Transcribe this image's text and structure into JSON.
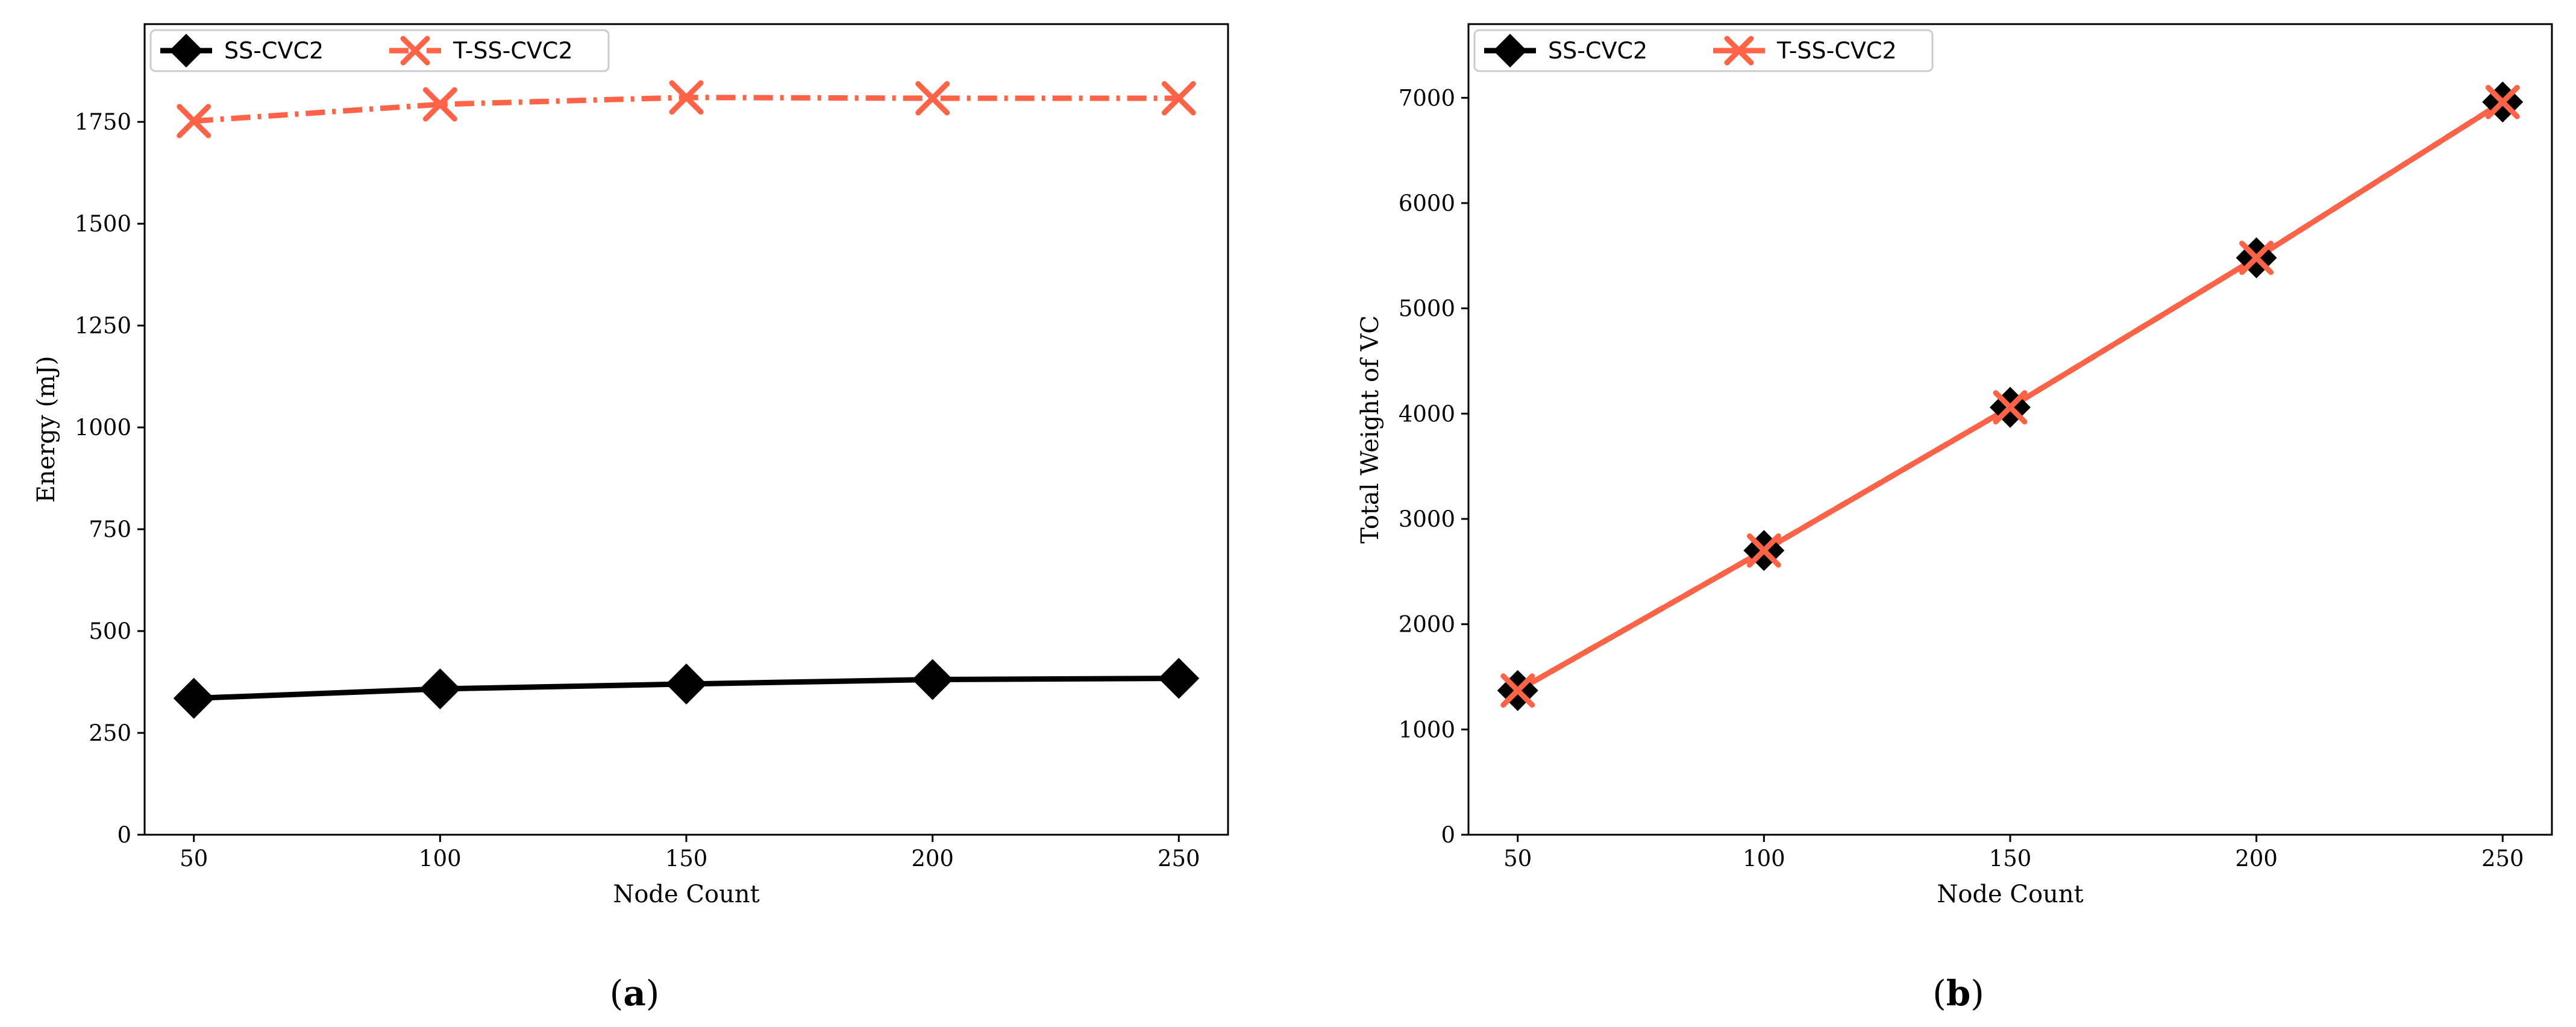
{
  "chart_data": [
    {
      "type": "line",
      "caption_open": "(",
      "caption_letter": "a",
      "caption_close": ")",
      "title": "",
      "xlabel": "Node Count",
      "ylabel": "Energy (mJ)",
      "x": [
        50,
        100,
        150,
        200,
        250
      ],
      "xticks": [
        50,
        100,
        150,
        200,
        250
      ],
      "xlim": [
        40,
        260
      ],
      "yticks": [
        0,
        250,
        500,
        750,
        1000,
        1250,
        1500,
        1750
      ],
      "ylim": [
        0,
        1990
      ],
      "grid": false,
      "legend_position": "top-left",
      "series": [
        {
          "name": "SS-CVC2",
          "values": [
            335,
            358,
            370,
            381,
            384
          ],
          "color": "#000000",
          "line_style": "solid",
          "marker": "diamond"
        },
        {
          "name": "T-SS-CVC2",
          "values": [
            1752,
            1793,
            1810,
            1808,
            1808
          ],
          "color": "#ff6347",
          "line_style": "dashdot",
          "marker": "x"
        }
      ]
    },
    {
      "type": "line",
      "caption_open": "(",
      "caption_letter": "b",
      "caption_close": ")",
      "title": "",
      "xlabel": "Node Count",
      "ylabel": "Total Weight of VC",
      "x": [
        50,
        100,
        150,
        200,
        250
      ],
      "xticks": [
        50,
        100,
        150,
        200,
        250
      ],
      "xlim": [
        40,
        260
      ],
      "yticks": [
        0,
        1000,
        2000,
        3000,
        4000,
        5000,
        6000,
        7000
      ],
      "ylim": [
        0,
        7700
      ],
      "grid": false,
      "legend_position": "top-left",
      "series": [
        {
          "name": "SS-CVC2",
          "values": [
            1370,
            2700,
            4060,
            5480,
            6960
          ],
          "color": "#000000",
          "line_style": "dashed",
          "marker": "diamond"
        },
        {
          "name": "T-SS-CVC2",
          "values": [
            1370,
            2700,
            4060,
            5480,
            6960
          ],
          "color": "#ff6347",
          "line_style": "solid",
          "marker": "x"
        }
      ]
    }
  ]
}
